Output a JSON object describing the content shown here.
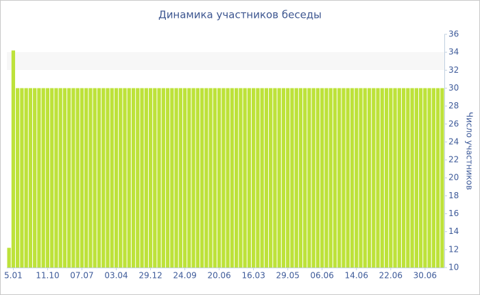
{
  "chart_data": {
    "type": "bar",
    "title": "Динамика участников беседы",
    "y_axis_label": "Число участников",
    "categories": [
      null,
      "5.01",
      null,
      null,
      null,
      null,
      null,
      null,
      null,
      "11.10",
      null,
      null,
      null,
      null,
      null,
      null,
      null,
      "07.07",
      null,
      null,
      null,
      null,
      null,
      null,
      null,
      "03.04",
      null,
      null,
      null,
      null,
      null,
      null,
      null,
      "29.12",
      null,
      null,
      null,
      null,
      null,
      null,
      null,
      "24.09",
      null,
      null,
      null,
      null,
      null,
      null,
      null,
      "20.06",
      null,
      null,
      null,
      null,
      null,
      null,
      null,
      "16.03",
      null,
      null,
      null,
      null,
      null,
      null,
      null,
      "29.05",
      null,
      null,
      null,
      null,
      null,
      null,
      null,
      "06.06",
      null,
      null,
      null,
      null,
      null,
      null,
      null,
      "14.06",
      null,
      null,
      null,
      null,
      null,
      null,
      null,
      "22.06",
      null,
      null,
      null,
      null,
      null,
      null,
      null,
      "30.06",
      null,
      null,
      null,
      null
    ],
    "values": [
      12.2,
      34.2,
      30,
      30,
      30,
      30,
      30,
      30,
      30,
      30,
      30,
      30,
      30,
      30,
      30,
      30,
      30,
      30,
      30,
      30,
      30,
      30,
      30,
      30,
      30,
      30,
      30,
      30,
      30,
      30,
      30,
      30,
      30,
      30,
      30,
      30,
      30,
      30,
      30,
      30,
      30,
      30,
      30,
      30,
      30,
      30,
      30,
      30,
      30,
      30,
      30,
      30,
      30,
      30,
      30,
      30,
      30,
      30,
      30,
      30,
      30,
      30,
      30,
      30,
      30,
      30,
      30,
      30,
      30,
      30,
      30,
      30,
      30,
      30,
      30,
      30,
      30,
      30,
      30,
      30,
      30,
      30,
      30,
      30,
      30,
      30,
      30,
      30,
      30,
      30,
      30,
      30,
      30,
      30,
      30,
      30,
      30,
      30,
      30,
      30,
      30,
      30
    ],
    "color": "#bde23a",
    "ylim": [
      10,
      36
    ],
    "yticks": [
      10,
      12,
      14,
      16,
      18,
      20,
      22,
      24,
      26,
      28,
      30,
      32,
      34,
      36
    ],
    "y_axis_side": "right"
  }
}
